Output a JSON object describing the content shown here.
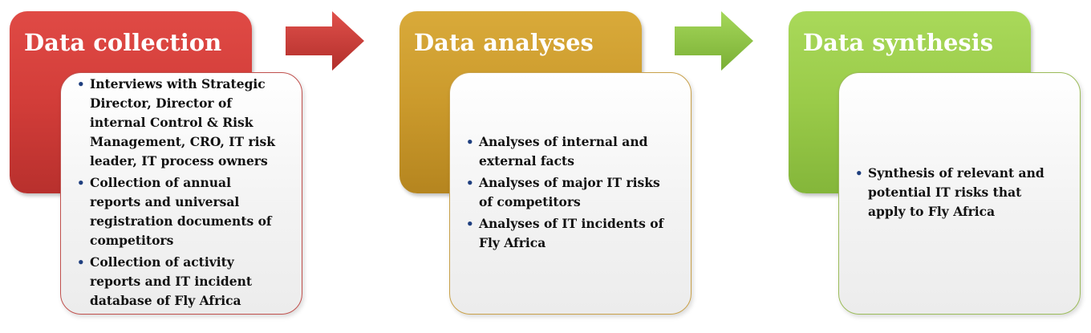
{
  "stages": [
    {
      "title": "Data collection",
      "color": "#d9403d",
      "items": [
        "Interviews with Strategic Director, Director of internal Control & Risk Management, CRO, IT risk leader, IT process owners",
        "Collection of annual reports and universal registration documents of competitors",
        "Collection of activity reports and IT incident database of Fly Africa"
      ]
    },
    {
      "title": "Data analyses",
      "color": "#cf9d2e",
      "items": [
        "Analyses of internal and external facts",
        "Analyses of major IT risks of competitors",
        "Analyses of IT incidents of Fly Africa"
      ]
    },
    {
      "title": "Data synthesis",
      "color": "#9bd14c",
      "items": [
        "Synthesis of relevant and potential IT risks that apply to Fly Africa"
      ]
    }
  ],
  "arrows": [
    {
      "color": "#c93a36"
    },
    {
      "color": "#8cc43f"
    }
  ]
}
